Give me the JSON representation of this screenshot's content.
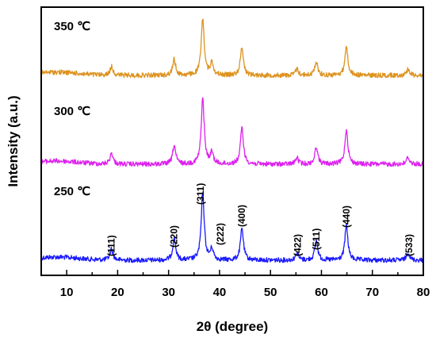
{
  "chart_data": {
    "type": "line",
    "title": "",
    "xlabel": "2θ (degree)",
    "ylabel": "Intensity (a.u.)",
    "xlim": [
      5,
      80
    ],
    "xticks": [
      10,
      20,
      30,
      40,
      50,
      60,
      70,
      80
    ],
    "y_ticks_shown": false,
    "grid": false,
    "legend": "none",
    "series": [
      {
        "name": "250 ℃",
        "color": "#1a1aff",
        "peaks": [
          {
            "x": 18.8,
            "height": 14
          },
          {
            "x": 31.1,
            "height": 28
          },
          {
            "x": 36.7,
            "height": 85
          },
          {
            "x": 38.5,
            "height": 14
          },
          {
            "x": 44.4,
            "height": 40
          },
          {
            "x": 55.2,
            "height": 9
          },
          {
            "x": 59.0,
            "height": 25
          },
          {
            "x": 64.9,
            "height": 44
          },
          {
            "x": 77.0,
            "height": 10
          }
        ]
      },
      {
        "name": "300 ℃",
        "color": "#dd22ee",
        "peaks": [
          {
            "x": 18.8,
            "height": 14
          },
          {
            "x": 31.1,
            "height": 24
          },
          {
            "x": 36.7,
            "height": 83
          },
          {
            "x": 38.5,
            "height": 14
          },
          {
            "x": 44.4,
            "height": 46
          },
          {
            "x": 55.2,
            "height": 8
          },
          {
            "x": 59.0,
            "height": 22
          },
          {
            "x": 64.9,
            "height": 44
          },
          {
            "x": 77.0,
            "height": 9
          }
        ]
      },
      {
        "name": "350 ℃",
        "color": "#dd9320",
        "peaks": [
          {
            "x": 18.8,
            "height": 11
          },
          {
            "x": 31.1,
            "height": 20
          },
          {
            "x": 36.7,
            "height": 72
          },
          {
            "x": 38.5,
            "height": 16
          },
          {
            "x": 44.4,
            "height": 36
          },
          {
            "x": 55.2,
            "height": 8
          },
          {
            "x": 59.0,
            "height": 17
          },
          {
            "x": 64.9,
            "height": 36
          },
          {
            "x": 77.0,
            "height": 8
          }
        ]
      }
    ],
    "annotations": [
      {
        "text": "(111)",
        "x": 18.8
      },
      {
        "text": "(220)",
        "x": 31.1
      },
      {
        "text": "(311)",
        "x": 36.3
      },
      {
        "text": "(222)",
        "x": 40.2
      },
      {
        "text": "(400)",
        "x": 44.4
      },
      {
        "text": "(422)",
        "x": 55.3
      },
      {
        "text": "(511)",
        "x": 59.0
      },
      {
        "text": "(440)",
        "x": 64.9
      },
      {
        "text": "(533)",
        "x": 77.2
      }
    ]
  }
}
